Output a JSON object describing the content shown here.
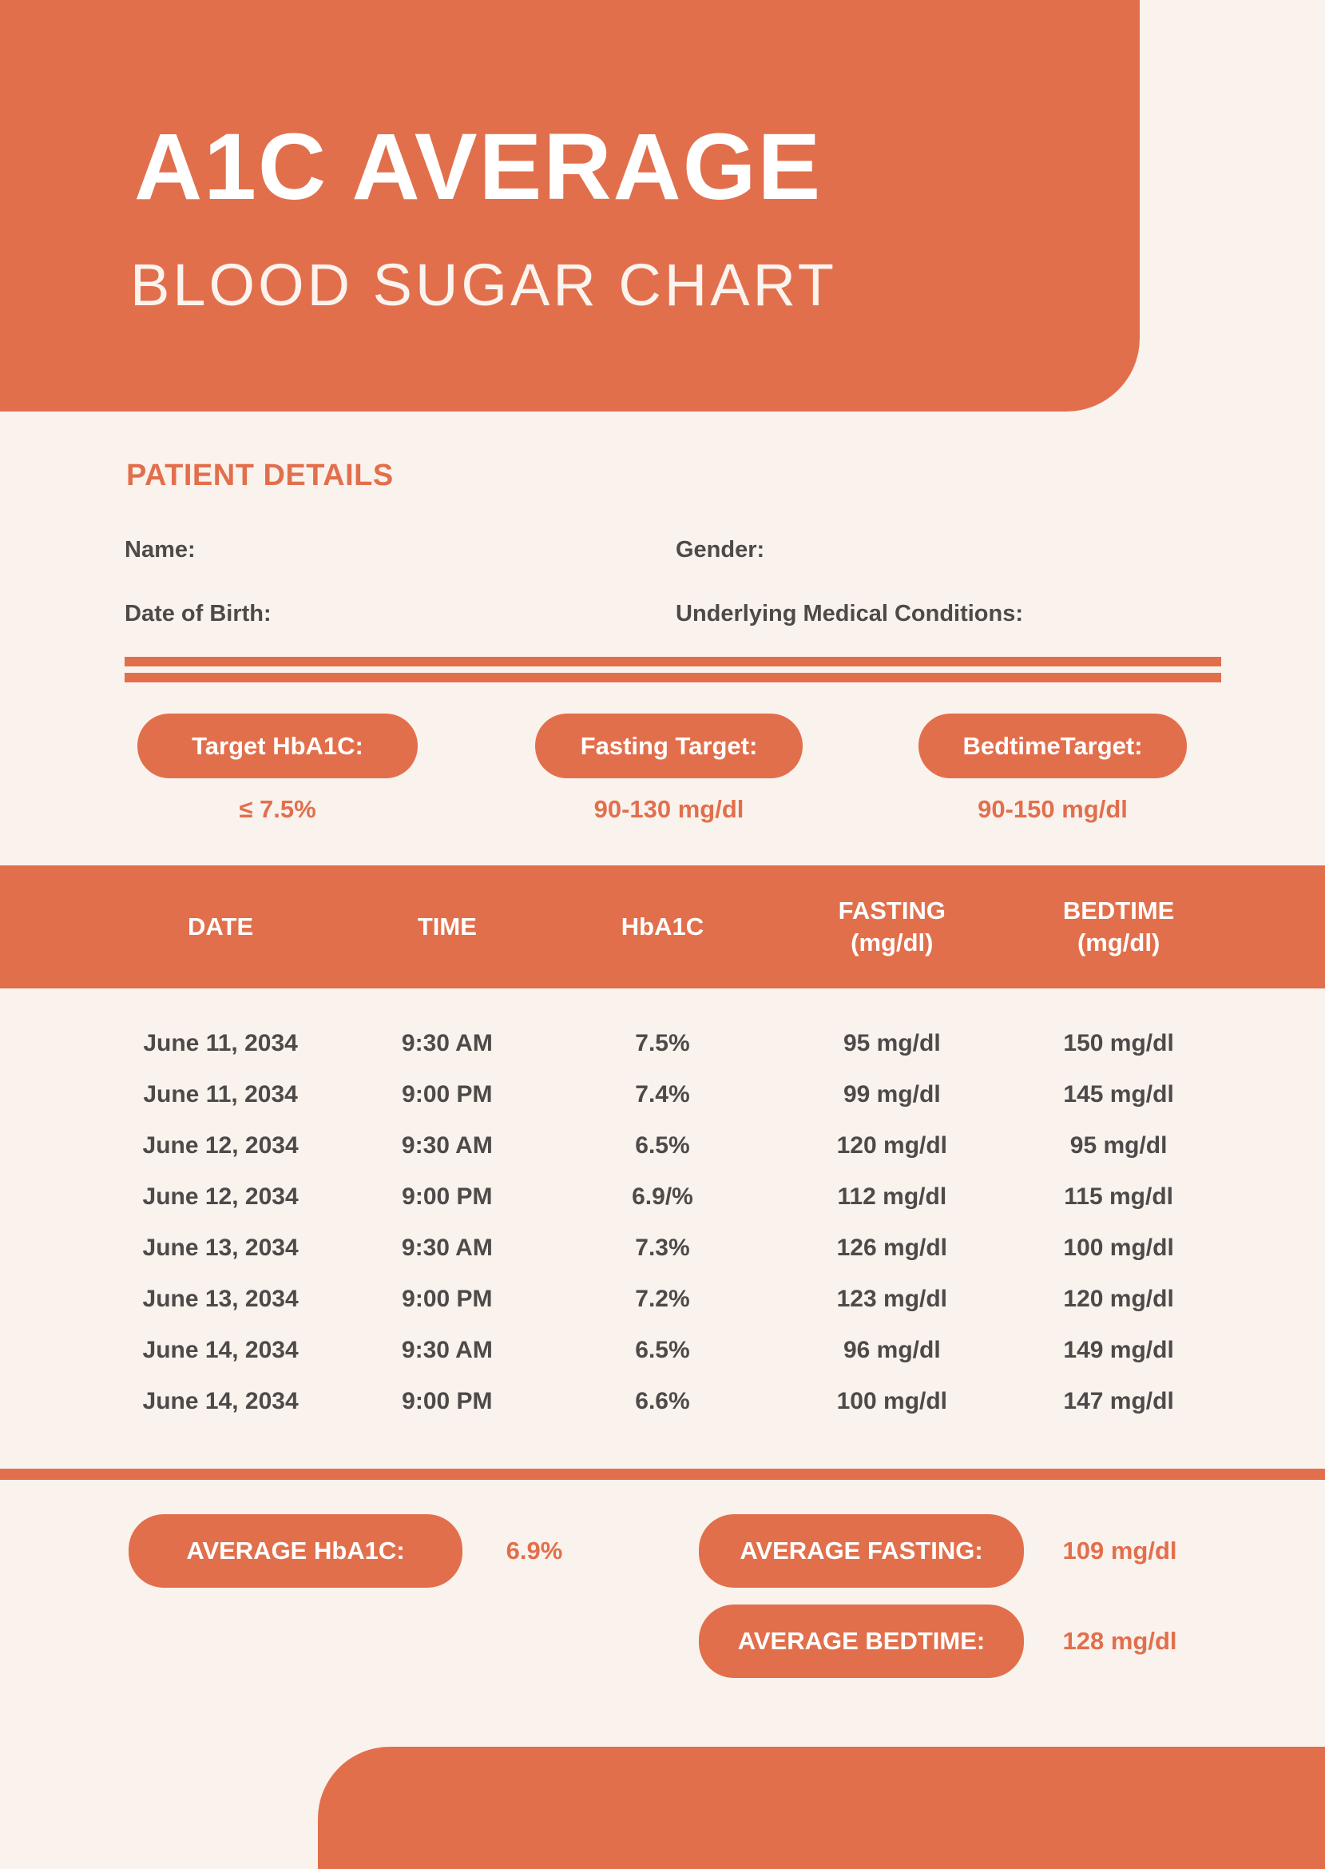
{
  "colors": {
    "accent": "#E26F4C",
    "cream": "#FAF2ED",
    "text": "#4D4A49"
  },
  "header": {
    "title": "A1C AVERAGE",
    "subtitle": "BLOOD SUGAR CHART"
  },
  "patient": {
    "heading": "PATIENT DETAILS",
    "name_label": "Name:",
    "gender_label": "Gender:",
    "dob_label": "Date of Birth:",
    "conditions_label": "Underlying Medical Conditions:"
  },
  "targets": [
    {
      "label": "Target HbA1C:",
      "value": "≤ 7.5%"
    },
    {
      "label": "Fasting Target:",
      "value": "90-130 mg/dl"
    },
    {
      "label": "BedtimeTarget:",
      "value": "90-150 mg/dl"
    }
  ],
  "table": {
    "columns": [
      {
        "line1": "DATE",
        "line2": ""
      },
      {
        "line1": "TIME",
        "line2": ""
      },
      {
        "line1": "HbA1C",
        "line2": ""
      },
      {
        "line1": "FASTING",
        "line2": "(mg/dl)"
      },
      {
        "line1": "BEDTIME",
        "line2": "(mg/dl)"
      }
    ],
    "rows": [
      [
        "June 11, 2034",
        "9:30 AM",
        "7.5%",
        "95 mg/dl",
        "150 mg/dl"
      ],
      [
        "June 11, 2034",
        "9:00 PM",
        "7.4%",
        "99 mg/dl",
        "145 mg/dl"
      ],
      [
        "June 12, 2034",
        "9:30 AM",
        "6.5%",
        "120 mg/dl",
        "95 mg/dl"
      ],
      [
        "June 12, 2034",
        "9:00 PM",
        "6.9/%",
        "112 mg/dl",
        "115 mg/dl"
      ],
      [
        "June 13, 2034",
        "9:30 AM",
        "7.3%",
        "126 mg/dl",
        "100 mg/dl"
      ],
      [
        "June 13, 2034",
        "9:00 PM",
        "7.2%",
        "123 mg/dl",
        "120 mg/dl"
      ],
      [
        "June 14, 2034",
        "9:30 AM",
        "6.5%",
        "96 mg/dl",
        "149 mg/dl"
      ],
      [
        "June 14, 2034",
        "9:00 PM",
        "6.6%",
        "100 mg/dl",
        "147 mg/dl"
      ]
    ]
  },
  "averages": [
    {
      "label": "AVERAGE HbA1C:",
      "value": "6.9%"
    },
    {
      "label": "AVERAGE FASTING:",
      "value": "109 mg/dl"
    },
    {
      "label": "AVERAGE BEDTIME:",
      "value": "128 mg/dl"
    }
  ]
}
